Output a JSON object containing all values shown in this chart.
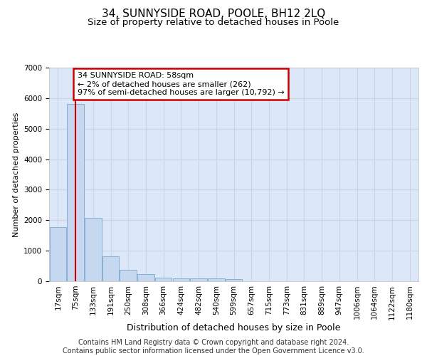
{
  "title": "34, SUNNYSIDE ROAD, POOLE, BH12 2LQ",
  "subtitle": "Size of property relative to detached houses in Poole",
  "xlabel": "Distribution of detached houses by size in Poole",
  "ylabel": "Number of detached properties",
  "bar_labels": [
    "17sqm",
    "75sqm",
    "133sqm",
    "191sqm",
    "250sqm",
    "308sqm",
    "366sqm",
    "424sqm",
    "482sqm",
    "540sqm",
    "599sqm",
    "657sqm",
    "715sqm",
    "773sqm",
    "831sqm",
    "889sqm",
    "947sqm",
    "1006sqm",
    "1064sqm",
    "1122sqm",
    "1180sqm"
  ],
  "bar_values": [
    1780,
    5800,
    2080,
    810,
    370,
    240,
    120,
    100,
    90,
    85,
    75,
    0,
    0,
    0,
    0,
    0,
    0,
    0,
    0,
    0,
    0
  ],
  "bar_color": "#c5d8f0",
  "bar_edge_color": "#7aaad0",
  "annotation_line1": "34 SUNNYSIDE ROAD: 58sqm",
  "annotation_line2": "← 2% of detached houses are smaller (262)",
  "annotation_line3": "97% of semi-detached houses are larger (10,792) →",
  "annotation_box_color": "#ffffff",
  "annotation_box_edge_color": "#cc0000",
  "vline_color": "#cc0000",
  "vline_x_index": 1.0,
  "ylim": [
    0,
    7000
  ],
  "yticks": [
    0,
    1000,
    2000,
    3000,
    4000,
    5000,
    6000,
    7000
  ],
  "grid_color": "#c8d4e8",
  "background_color": "#dce8f8",
  "footer_line1": "Contains HM Land Registry data © Crown copyright and database right 2024.",
  "footer_line2": "Contains public sector information licensed under the Open Government Licence v3.0.",
  "title_fontsize": 11,
  "subtitle_fontsize": 9.5,
  "xlabel_fontsize": 9,
  "ylabel_fontsize": 8,
  "tick_fontsize": 7.5,
  "footer_fontsize": 7
}
